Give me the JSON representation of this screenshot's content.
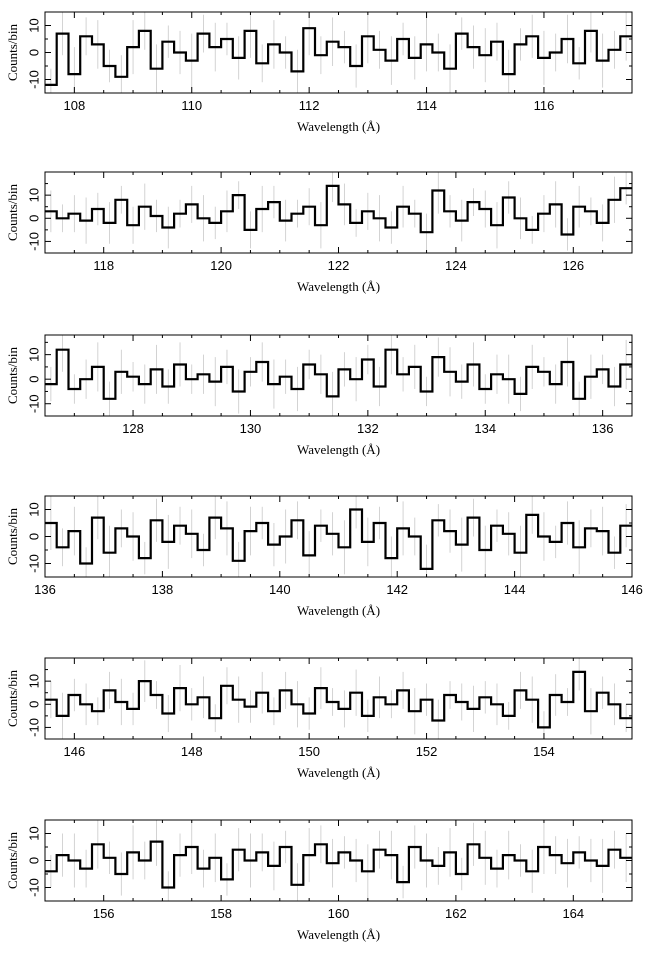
{
  "chart_data": [
    {
      "type": "line",
      "step": true,
      "xlabel": "Wavelength (Å)",
      "ylabel": "Counts/bin",
      "xlim": [
        107.5,
        117.5
      ],
      "ylim": [
        -15,
        15
      ],
      "xticks": [
        108,
        110,
        112,
        114,
        116
      ],
      "yticks": [
        -10,
        0,
        10
      ],
      "series": [
        {
          "values": [
            -12,
            7,
            -8,
            6,
            3,
            -5,
            -9,
            2,
            8,
            -6,
            4,
            0,
            -3,
            7,
            2,
            5,
            -2,
            8,
            -4,
            3,
            0,
            -7,
            9,
            -1,
            4,
            2,
            -5,
            6,
            1,
            -3,
            5,
            -2,
            3,
            0,
            -6,
            7,
            2,
            -1,
            4,
            -8,
            3,
            6,
            -2,
            0,
            5,
            -4,
            8,
            -3,
            1,
            6
          ]
        }
      ]
    },
    {
      "type": "line",
      "step": true,
      "xlabel": "Wavelength (Å)",
      "ylabel": "Counts/bin",
      "xlim": [
        117,
        127
      ],
      "ylim": [
        -15,
        20
      ],
      "xticks": [
        118,
        120,
        122,
        124,
        126
      ],
      "yticks": [
        -10,
        0,
        10
      ],
      "series": [
        {
          "values": [
            3,
            0,
            2,
            -1,
            4,
            -2,
            8,
            -3,
            5,
            1,
            -4,
            2,
            6,
            0,
            -2,
            3,
            10,
            -5,
            4,
            7,
            -1,
            2,
            5,
            -3,
            14,
            6,
            -2,
            3,
            0,
            -4,
            5,
            2,
            -6,
            12,
            3,
            -1,
            7,
            4,
            -3,
            9,
            0,
            -5,
            2,
            6,
            -7,
            5,
            3,
            -2,
            8,
            13
          ]
        }
      ]
    },
    {
      "type": "line",
      "step": true,
      "xlabel": "Wavelength (Å)",
      "ylabel": "Counts/bin",
      "xlim": [
        126.5,
        136.5
      ],
      "ylim": [
        -15,
        18
      ],
      "xticks": [
        128,
        130,
        132,
        134,
        136
      ],
      "yticks": [
        -10,
        0,
        10
      ],
      "series": [
        {
          "values": [
            -2,
            12,
            -4,
            0,
            5,
            -8,
            3,
            1,
            -2,
            4,
            -3,
            6,
            0,
            2,
            -1,
            5,
            -5,
            3,
            7,
            -2,
            1,
            -4,
            6,
            2,
            -7,
            4,
            0,
            8,
            -3,
            12,
            2,
            5,
            -5,
            9,
            3,
            -1,
            6,
            -4,
            2,
            0,
            -6,
            5,
            3,
            -2,
            7,
            -8,
            1,
            4,
            -3,
            6
          ]
        }
      ]
    },
    {
      "type": "line",
      "step": true,
      "xlabel": "Wavelength (Å)",
      "ylabel": "Counts/bin",
      "xlim": [
        136,
        146
      ],
      "ylim": [
        -15,
        15
      ],
      "xticks": [
        136,
        138,
        140,
        142,
        144,
        146
      ],
      "yticks": [
        -10,
        0,
        10
      ],
      "series": [
        {
          "values": [
            5,
            -4,
            2,
            -10,
            7,
            -6,
            3,
            0,
            -8,
            6,
            -2,
            4,
            1,
            -5,
            7,
            3,
            -9,
            2,
            5,
            -3,
            0,
            6,
            -7,
            4,
            1,
            -4,
            10,
            -2,
            5,
            -8,
            3,
            0,
            -12,
            6,
            2,
            -3,
            7,
            -5,
            4,
            1,
            -6,
            8,
            0,
            -2,
            5,
            -4,
            3,
            2,
            -6,
            4
          ]
        }
      ]
    },
    {
      "type": "line",
      "step": true,
      "xlabel": "Wavelength (Å)",
      "ylabel": "Counts/bin",
      "xlim": [
        145.5,
        155.5
      ],
      "ylim": [
        -15,
        20
      ],
      "xticks": [
        146,
        148,
        150,
        152,
        154
      ],
      "yticks": [
        -10,
        0,
        10
      ],
      "series": [
        {
          "values": [
            2,
            -5,
            4,
            0,
            -3,
            6,
            1,
            -2,
            10,
            4,
            -4,
            7,
            0,
            3,
            -6,
            8,
            2,
            -1,
            5,
            -3,
            6,
            0,
            -4,
            7,
            1,
            -2,
            5,
            -5,
            3,
            0,
            6,
            -3,
            2,
            -7,
            4,
            1,
            -2,
            3,
            0,
            -5,
            6,
            2,
            -10,
            4,
            1,
            14,
            -3,
            5,
            0,
            -6
          ]
        }
      ]
    },
    {
      "type": "line",
      "step": true,
      "xlabel": "Wavelength (Å)",
      "ylabel": "Counts/bin",
      "xlim": [
        155,
        165
      ],
      "ylim": [
        -15,
        15
      ],
      "xticks": [
        156,
        158,
        160,
        162,
        164
      ],
      "yticks": [
        -10,
        0,
        10
      ],
      "series": [
        {
          "values": [
            -4,
            2,
            0,
            -3,
            6,
            1,
            -5,
            3,
            0,
            7,
            -10,
            2,
            5,
            -3,
            1,
            -7,
            4,
            0,
            3,
            -2,
            5,
            -9,
            2,
            6,
            -1,
            3,
            0,
            -4,
            4,
            2,
            -8,
            5,
            0,
            -2,
            3,
            -5,
            6,
            1,
            -3,
            2,
            0,
            -4,
            5,
            2,
            -1,
            3,
            0,
            -2,
            4,
            1
          ]
        }
      ]
    }
  ]
}
